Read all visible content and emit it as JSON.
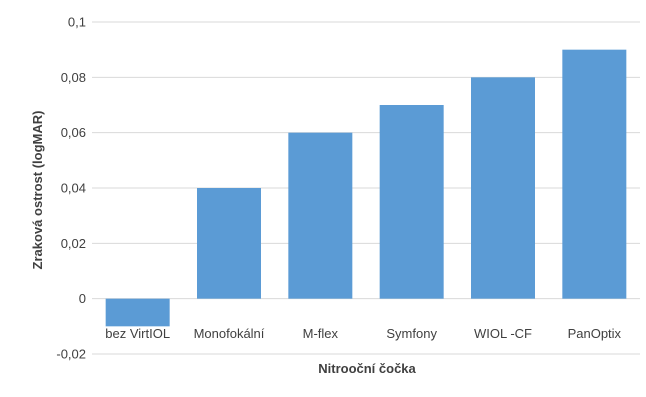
{
  "chart_data": {
    "type": "bar",
    "categories": [
      "bez VirtIOL",
      "Monofokální",
      "M-flex",
      "Symfony",
      "WIOL -CF",
      "PanOptix"
    ],
    "values": [
      -0.01,
      0.04,
      0.06,
      0.07,
      0.08,
      0.09
    ],
    "title": "",
    "xlabel": "Nitrooční čočka",
    "ylabel": "Zraková ostrost (logMAR)",
    "ylim": [
      -0.02,
      0.1
    ],
    "yticks": [
      -0.02,
      0,
      0.02,
      0.04,
      0.06,
      0.08,
      0.1
    ],
    "ytick_labels": [
      "-0,02",
      "0",
      "0,02",
      "0,04",
      "0,06",
      "0,08",
      "0,1"
    ],
    "grid": true,
    "legend": "none",
    "bar_color": "#5b9bd5",
    "grid_color": "#d9d9d9"
  }
}
